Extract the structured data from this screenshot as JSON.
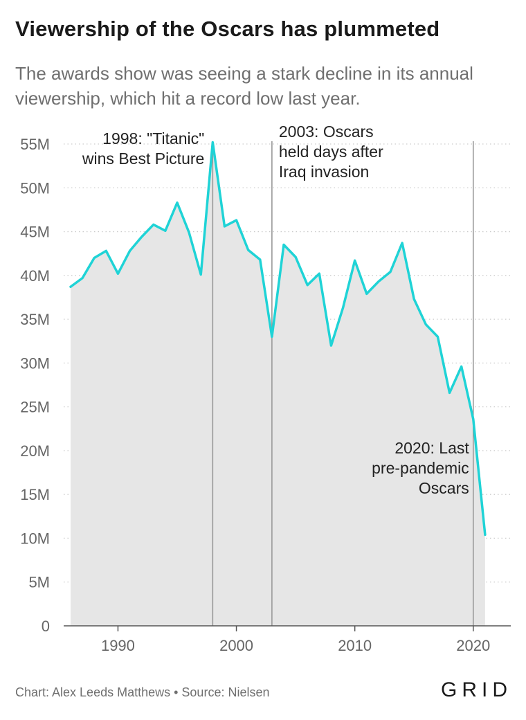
{
  "header": {
    "title": "Viewership of the Oscars has plummeted",
    "subtitle": "The awards show was seeing a stark decline in its annual viewership, which hit a record low last year."
  },
  "footer": {
    "credit": "Chart: Alex Leeds Matthews • Source: Nielsen",
    "logo": "GRID"
  },
  "colors": {
    "line": "#1fd3d6",
    "area": "#e6e6e6",
    "grid": "#cccccc",
    "annotation_line": "#999999",
    "tick_text": "#666666",
    "annotation_text": "#222222"
  },
  "chart_data": {
    "type": "area",
    "xlim": [
      1986,
      2022
    ],
    "ylim": [
      0,
      55
    ],
    "y_unit": "M",
    "yticks": [
      0,
      5,
      10,
      15,
      20,
      25,
      30,
      35,
      40,
      45,
      50,
      55
    ],
    "ytick_labels": [
      "0",
      "5M",
      "10M",
      "15M",
      "20M",
      "25M",
      "30M",
      "35M",
      "40M",
      "45M",
      "50M",
      "55M"
    ],
    "xticks": [
      1990,
      2000,
      2010,
      2020
    ],
    "xtick_labels": [
      "1990",
      "2000",
      "2010",
      "2020"
    ],
    "grid": "horizontal-dotted",
    "x": [
      1986,
      1987,
      1988,
      1989,
      1990,
      1991,
      1992,
      1993,
      1994,
      1995,
      1996,
      1997,
      1998,
      1999,
      2000,
      2001,
      2002,
      2003,
      2004,
      2005,
      2006,
      2007,
      2008,
      2009,
      2010,
      2011,
      2012,
      2013,
      2014,
      2015,
      2016,
      2017,
      2018,
      2019,
      2020,
      2021
    ],
    "y": [
      38.7,
      39.7,
      42.0,
      42.8,
      40.2,
      42.8,
      44.4,
      45.8,
      45.1,
      48.3,
      44.9,
      40.1,
      55.2,
      45.6,
      46.3,
      42.9,
      41.8,
      33.0,
      43.5,
      42.1,
      38.9,
      40.2,
      32.0,
      36.3,
      41.7,
      37.9,
      39.3,
      40.4,
      43.7,
      37.3,
      34.4,
      33.0,
      26.6,
      29.6,
      23.6,
      10.4
    ],
    "annotations": [
      {
        "x": 1998,
        "lines": [
          "1998: \"Titanic\"",
          "wins Best Picture"
        ],
        "align": "left-of-line"
      },
      {
        "x": 2003,
        "lines": [
          "2003: Oscars",
          "held days after",
          "Iraq invasion"
        ],
        "align": "right-of-line"
      },
      {
        "x": 2020,
        "lines": [
          "2020: Last",
          "pre-pandemic",
          "Oscars"
        ],
        "align": "left-of-line"
      }
    ]
  }
}
